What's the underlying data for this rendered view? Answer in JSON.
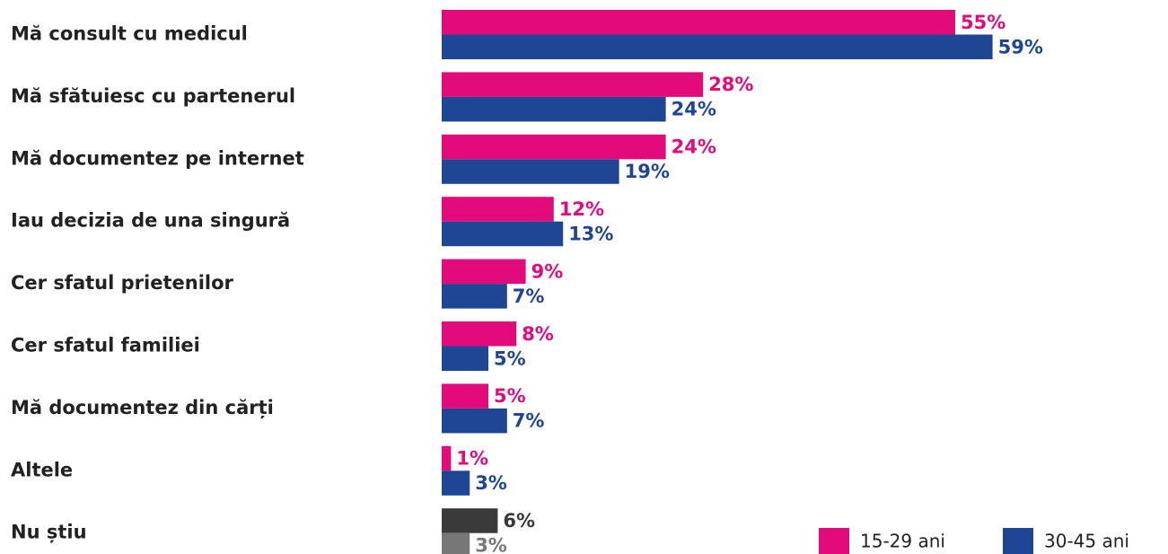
{
  "chart_data": {
    "type": "bar",
    "orientation": "horizontal",
    "categories": [
      "Mă consult cu medicul",
      "Mă sfătuiesc cu partenerul",
      "Mă documentez pe internet",
      "Iau decizia de una singură",
      "Cer sfatul prietenilor",
      "Cer sfatul familiei",
      "Mă documentez din cărți",
      "Altele",
      "Nu știu"
    ],
    "series": [
      {
        "name": "15-29 ani",
        "color": "#e30b7c",
        "colors": [
          "#e30b7c",
          "#e30b7c",
          "#e30b7c",
          "#e30b7c",
          "#e30b7c",
          "#e30b7c",
          "#e30b7c",
          "#e30b7c",
          "#3a3a3a"
        ],
        "values": [
          55,
          28,
          24,
          12,
          9,
          8,
          5,
          1,
          6
        ],
        "value_labels": [
          "55%",
          "28%",
          "24%",
          "12%",
          "9%",
          "8%",
          "5%",
          "1%",
          "6%"
        ]
      },
      {
        "name": "30-45 ani",
        "color": "#1f4595",
        "colors": [
          "#1f4595",
          "#1f4595",
          "#1f4595",
          "#1f4595",
          "#1f4595",
          "#1f4595",
          "#1f4595",
          "#1f4595",
          "#777777"
        ],
        "values": [
          59,
          24,
          19,
          13,
          7,
          5,
          7,
          3,
          3
        ],
        "value_labels": [
          "59%",
          "24%",
          "19%",
          "13%",
          "7%",
          "5%",
          "7%",
          "3%",
          "3%"
        ]
      }
    ],
    "legend": "bottom-right"
  }
}
